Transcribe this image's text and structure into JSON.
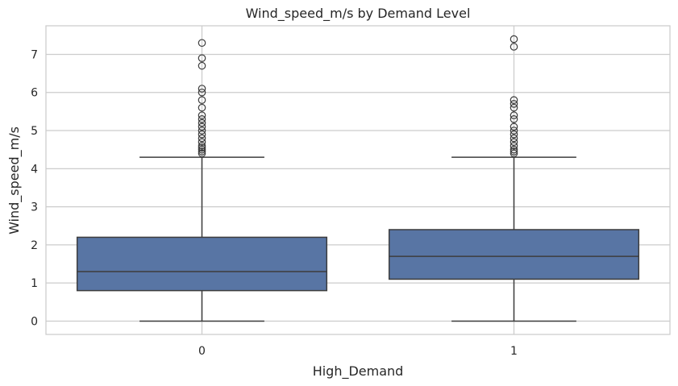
{
  "chart_data": {
    "type": "box",
    "title": "Wind_speed_m/s by Demand Level",
    "xlabel": "High_Demand",
    "ylabel": "Wind_speed_m/s",
    "categories": [
      "0",
      "1"
    ],
    "ylim": [
      -0.35,
      7.75
    ],
    "yticks": [
      0,
      1,
      2,
      3,
      4,
      5,
      6,
      7
    ],
    "yticklabels": [
      "0",
      "1",
      "2",
      "3",
      "4",
      "5",
      "6",
      "7"
    ],
    "grid": true,
    "box_color": "#5875a4",
    "line_color": "#3d3d3d",
    "boxes": [
      {
        "category": "0",
        "whisker_low": 0.0,
        "q1": 0.8,
        "median": 1.3,
        "q3": 2.2,
        "whisker_high": 4.3,
        "outliers": [
          4.4,
          4.45,
          4.5,
          4.55,
          4.6,
          4.7,
          4.8,
          4.9,
          5.0,
          5.1,
          5.2,
          5.3,
          5.4,
          5.6,
          5.8,
          6.0,
          6.1,
          6.7,
          6.9,
          7.3
        ]
      },
      {
        "category": "1",
        "whisker_low": 0.0,
        "q1": 1.1,
        "median": 1.7,
        "q3": 2.4,
        "whisker_high": 4.3,
        "outliers": [
          4.4,
          4.45,
          4.5,
          4.6,
          4.7,
          4.8,
          4.9,
          5.0,
          5.1,
          5.3,
          5.4,
          5.6,
          5.7,
          5.8,
          7.2,
          7.4
        ]
      }
    ]
  }
}
